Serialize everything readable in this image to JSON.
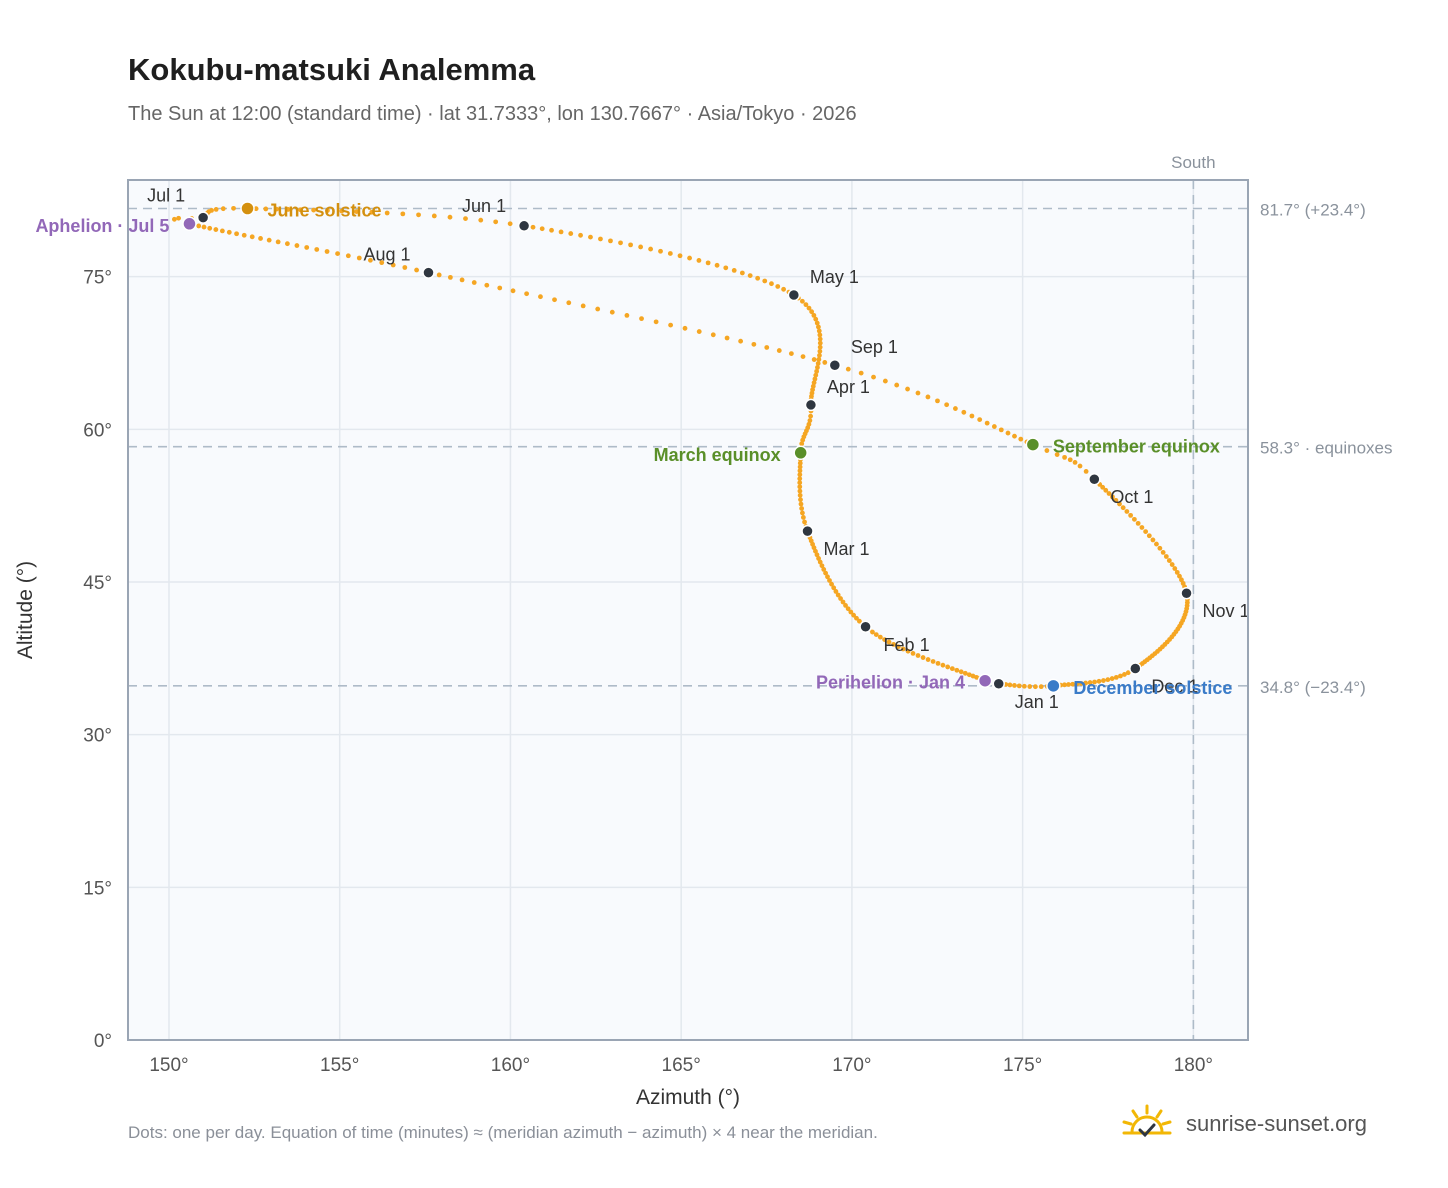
{
  "title": "Kokubu-matsuki Analemma",
  "subtitle": "The Sun at 12:00 (standard time) · lat 31.7333°, lon 130.7667° · Asia/Tokyo · 2026",
  "footnote": "Dots: one per day. Equation of time (minutes) ≈ (meridian azimuth − azimuth) × 4 near the meridian.",
  "brand": {
    "name": "sunrise-sunset.org",
    "icon": "sun-check-icon"
  },
  "colors": {
    "path": "#f5a623",
    "month": "#2f3640",
    "solstice_june": "#d4900f",
    "equinox": "#5a8f29",
    "solstice_december": "#3a7bc8",
    "apsis": "#9268b8",
    "refline": "#aebbc8",
    "plot_bg": "#f8fafd",
    "grid": "#e3e8ee",
    "frame": "#9aa5b4"
  },
  "chart_data": {
    "type": "scatter",
    "title": "Kokubu-matsuki Analemma",
    "xlabel": "Azimuth (°)",
    "ylabel": "Altitude (°)",
    "xlim": [
      148.8,
      181.6
    ],
    "ylim": [
      0,
      84.5
    ],
    "xticks": [
      150,
      155,
      160,
      165,
      170,
      175,
      180
    ],
    "yticks": [
      0,
      15,
      30,
      45,
      60,
      75
    ],
    "x_tick_labels": [
      "150°",
      "155°",
      "160°",
      "165°",
      "170°",
      "175°",
      "180°"
    ],
    "y_tick_labels": [
      "0°",
      "15°",
      "30°",
      "45°",
      "60°",
      "75°"
    ],
    "grid": true,
    "vertical_reference": {
      "x": 180,
      "label": "South"
    },
    "reference_lines": [
      {
        "y": 81.7,
        "label": "81.7° (+23.4°)"
      },
      {
        "y": 58.3,
        "label": "58.3° · equinoxes"
      },
      {
        "y": 34.8,
        "label": "34.8° (−23.4°)"
      }
    ],
    "month_points": [
      {
        "label": "Jan 1",
        "azimuth": 174.3,
        "altitude": 35.0
      },
      {
        "label": "Feb 1",
        "azimuth": 170.4,
        "altitude": 40.6
      },
      {
        "label": "Mar 1",
        "azimuth": 168.7,
        "altitude": 50.0
      },
      {
        "label": "Apr 1",
        "azimuth": 168.8,
        "altitude": 62.4
      },
      {
        "label": "May 1",
        "azimuth": 168.3,
        "altitude": 73.2
      },
      {
        "label": "Jun 1",
        "azimuth": 160.4,
        "altitude": 80.0
      },
      {
        "label": "Jul 1",
        "azimuth": 151.0,
        "altitude": 80.8
      },
      {
        "label": "Aug 1",
        "azimuth": 157.6,
        "altitude": 75.4
      },
      {
        "label": "Sep 1",
        "azimuth": 169.5,
        "altitude": 66.3
      },
      {
        "label": "Oct 1",
        "azimuth": 177.1,
        "altitude": 55.1
      },
      {
        "label": "Nov 1",
        "azimuth": 179.8,
        "altitude": 43.9
      },
      {
        "label": "Dec 1",
        "azimuth": 178.3,
        "altitude": 36.5
      }
    ],
    "events": [
      {
        "label": "June solstice",
        "azimuth": 152.3,
        "altitude": 81.7,
        "kind": "solstice_june"
      },
      {
        "label": "March equinox",
        "azimuth": 168.5,
        "altitude": 57.7,
        "kind": "equinox"
      },
      {
        "label": "September equinox",
        "azimuth": 175.3,
        "altitude": 58.5,
        "kind": "equinox"
      },
      {
        "label": "December solstice",
        "azimuth": 175.9,
        "altitude": 34.8,
        "kind": "solstice_december"
      },
      {
        "label": "Aphelion · Jul 5",
        "azimuth": 150.6,
        "altitude": 80.2,
        "kind": "apsis"
      },
      {
        "label": "Perihelion · Jan 4",
        "azimuth": 173.9,
        "altitude": 35.3,
        "kind": "apsis"
      }
    ]
  }
}
